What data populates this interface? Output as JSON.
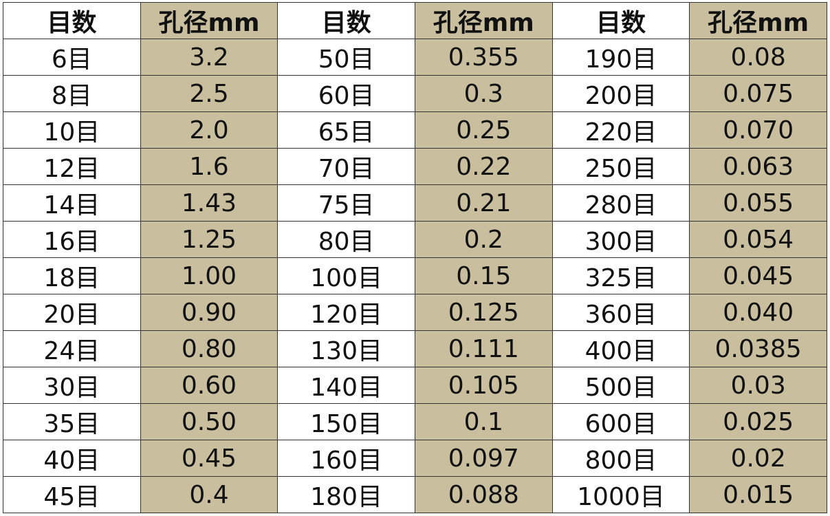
{
  "table": {
    "header": [
      "目数",
      "孔径mm",
      "目数",
      "孔径mm",
      "目数",
      "孔径mm"
    ],
    "rows": [
      [
        "6目",
        "3.2",
        "50目",
        "0.355",
        "190目",
        "0.08"
      ],
      [
        "8目",
        "2.5",
        "60目",
        "0.3",
        "200目",
        "0.075"
      ],
      [
        "10目",
        "2.0",
        "65目",
        "0.25",
        "220目",
        "0.070"
      ],
      [
        "12目",
        "1.6",
        "70目",
        "0.22",
        "250目",
        "0.063"
      ],
      [
        "14目",
        "1.43",
        "75目",
        "0.21",
        "280目",
        "0.055"
      ],
      [
        "16目",
        "1.25",
        "80目",
        "0.2",
        "300目",
        "0.054"
      ],
      [
        "18目",
        "1.00",
        "100目",
        "0.15",
        "325目",
        "0.045"
      ],
      [
        "20目",
        "0.90",
        "120目",
        "0.125",
        "360目",
        "0.040"
      ],
      [
        "24目",
        "0.80",
        "130目",
        "0.111",
        "400目",
        "0.0385"
      ],
      [
        "30目",
        "0.60",
        "140目",
        "0.105",
        "500目",
        "0.03"
      ],
      [
        "35目",
        "0.50",
        "150目",
        "0.1",
        "600目",
        "0.025"
      ],
      [
        "40目",
        "0.45",
        "160目",
        "0.097",
        "800目",
        "0.02"
      ],
      [
        "45目",
        "0.4",
        "180目",
        "0.088",
        "1000目",
        "0.015"
      ]
    ]
  }
}
